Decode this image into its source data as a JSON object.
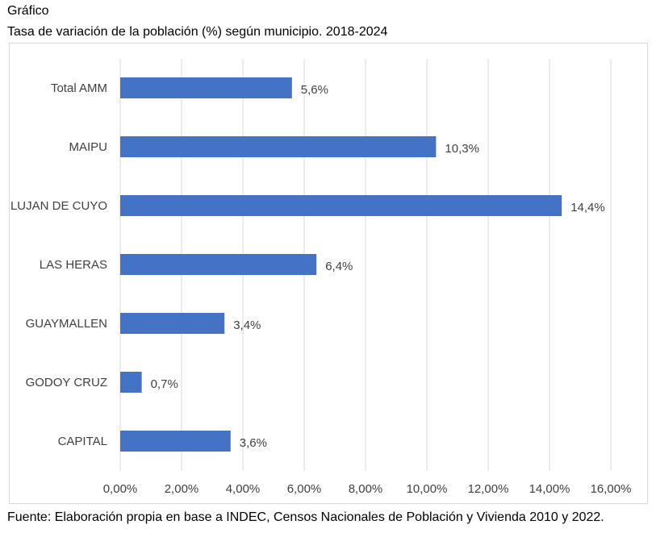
{
  "header": {
    "label": "Gráfico",
    "title": "Tasa de variación de la población (%) según municipio. 2018-2024"
  },
  "footer": {
    "source": "Fuente: Elaboración propia en base a INDEC, Censos Nacionales de Población y Vivienda 2010 y 2022."
  },
  "colors": {
    "bar": "#4472C4",
    "grid": "#d9d9d9",
    "text": "#404040"
  },
  "chart_data": {
    "type": "bar",
    "orientation": "horizontal",
    "categories": [
      "Total AMM",
      "MAIPU",
      "LUJAN DE CUYO",
      "LAS HERAS",
      "GUAYMALLEN",
      "GODOY CRUZ",
      "CAPITAL"
    ],
    "values": [
      5.6,
      10.3,
      14.4,
      6.4,
      3.4,
      0.7,
      3.6
    ],
    "data_labels": [
      "5,6%",
      "10,3%",
      "14,4%",
      "6,4%",
      "3,4%",
      "0,7%",
      "3,6%"
    ],
    "x_ticks": [
      0,
      2,
      4,
      6,
      8,
      10,
      12,
      14,
      16
    ],
    "x_tick_labels": [
      "0,00%",
      "2,00%",
      "4,00%",
      "6,00%",
      "8,00%",
      "10,00%",
      "12,00%",
      "14,00%",
      "16,00%"
    ],
    "xlim": [
      0,
      16
    ],
    "grid": true,
    "legend": "none"
  }
}
